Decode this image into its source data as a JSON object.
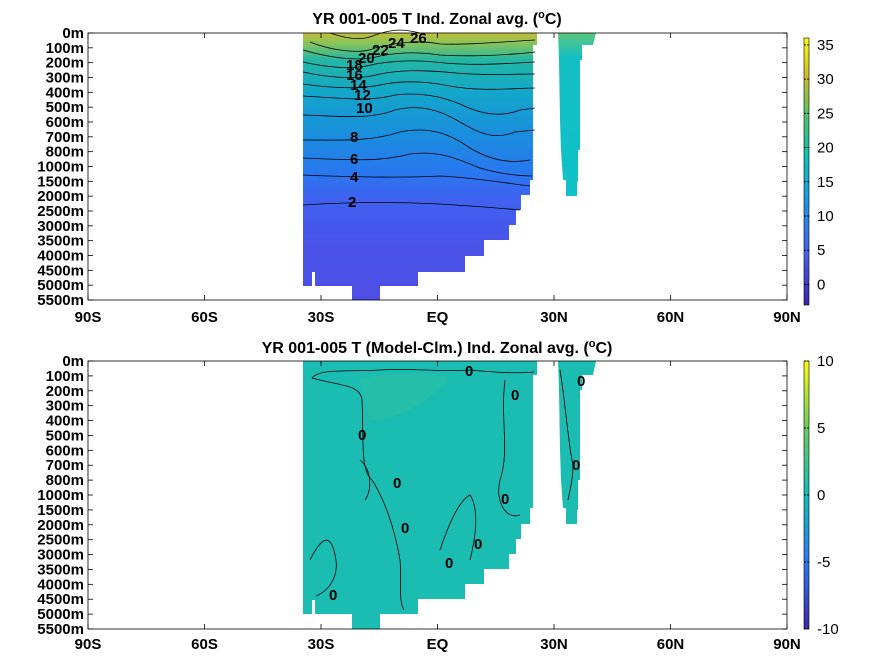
{
  "chart_data": [
    {
      "type": "heatmap",
      "title_main": "YR 001-005 T Ind. Zonal avg. (",
      "title_sup": "o",
      "title_end": "C)",
      "x_ticks": [
        "90S",
        "60S",
        "30S",
        "EQ",
        "30N",
        "60N",
        "90N"
      ],
      "x_values": [
        -90,
        -60,
        -30,
        0,
        30,
        60,
        90
      ],
      "y_ticks": [
        "0m",
        "100m",
        "200m",
        "300m",
        "400m",
        "500m",
        "600m",
        "700m",
        "800m",
        "1000m",
        "1500m",
        "2000m",
        "2500m",
        "3000m",
        "3500m",
        "4000m",
        "4500m",
        "5000m",
        "5500m"
      ],
      "colorbar": {
        "min": -3,
        "max": 36,
        "ticks": [
          35,
          30,
          25,
          20,
          15,
          10,
          5,
          0
        ]
      },
      "contour_labels": [
        "26",
        "24",
        "22",
        "20",
        "18",
        "16",
        "14",
        "12",
        "10",
        "8",
        "6",
        "4",
        "2"
      ],
      "grid": false,
      "legend": "colorbar-right"
    },
    {
      "type": "heatmap",
      "title_main": "YR 001-005 T (Model-Clm.) Ind. Zonal avg. (",
      "title_sup": "o",
      "title_end": "C)",
      "x_ticks": [
        "90S",
        "60S",
        "30S",
        "EQ",
        "30N",
        "60N",
        "90N"
      ],
      "x_values": [
        -90,
        -60,
        -30,
        0,
        30,
        60,
        90
      ],
      "y_ticks": [
        "0m",
        "100m",
        "200m",
        "300m",
        "400m",
        "500m",
        "600m",
        "700m",
        "800m",
        "1000m",
        "1500m",
        "2000m",
        "2500m",
        "3000m",
        "3500m",
        "4000m",
        "4500m",
        "5000m",
        "5500m"
      ],
      "colorbar": {
        "min": -10,
        "max": 10,
        "ticks": [
          10,
          5,
          0,
          -5,
          -10
        ]
      },
      "contour_labels": [
        "0",
        "0",
        "0",
        "0",
        "0",
        "0",
        "0",
        "0",
        "0",
        "0",
        "0"
      ],
      "grid": false,
      "legend": "colorbar-right"
    }
  ]
}
